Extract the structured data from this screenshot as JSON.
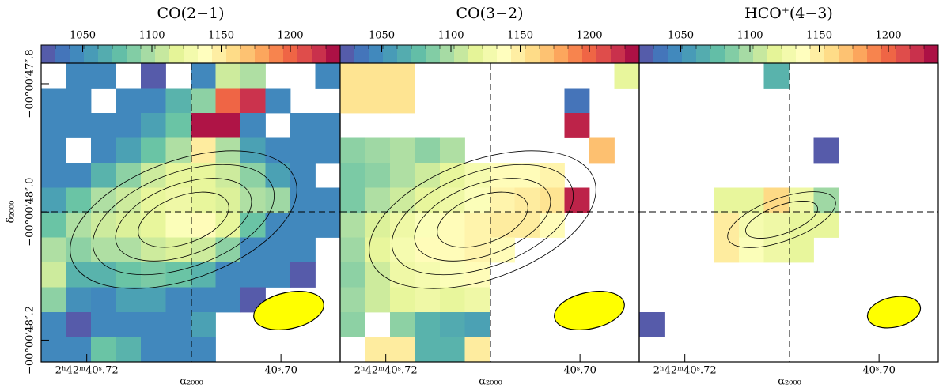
{
  "chart_data": [
    {
      "type": "heatmap",
      "title": "CO(2−1)",
      "xlabel": "α₂₀₀₀",
      "ylabel": "δ₂₀₀₀",
      "xlim": [
        40.7247,
        40.6939
      ],
      "ylim": [
        48.234,
        47.768
      ],
      "xticks": [
        {
          "value": 40.72,
          "label": "2ʰ42ᵐ40ˢ.72"
        },
        {
          "value": 40.7,
          "label": "40ˢ.70"
        }
      ],
      "yticks": [
        {
          "value": 47.8,
          "label": "−00°00′47″.8"
        },
        {
          "value": 48.0,
          "label": "−00°00′48″.0"
        },
        {
          "value": 48.2,
          "label": "−00°00′48″.2"
        }
      ],
      "clim": [
        1020,
        1236
      ],
      "cticks": [
        1050,
        1100,
        1150,
        1200
      ],
      "colormap": [
        "#5e4fa2",
        "#3d7fc0",
        "#4aa0b5",
        "#66c2a5",
        "#abdda4",
        "#e6f598",
        "#ffffbf",
        "#fee08b",
        "#fdae61",
        "#f46d43",
        "#d53e4f",
        "#9e0142"
      ],
      "z": [
        [
          null,
          1045,
          1045,
          null,
          1025,
          null,
          1045,
          1110,
          1100,
          null,
          null,
          1045
        ],
        [
          1045,
          1045,
          null,
          1045,
          1045,
          1070,
          1090,
          1200,
          1220,
          1045,
          null,
          null
        ],
        [
          1045,
          1045,
          1045,
          1045,
          1060,
          1080,
          1230,
          1230,
          1045,
          null,
          1045,
          1045
        ],
        [
          1045,
          null,
          1045,
          1060,
          1080,
          1100,
          1150,
          1100,
          1060,
          1045,
          1045,
          1045
        ],
        [
          1045,
          1045,
          1070,
          1090,
          1110,
          1120,
          1120,
          1110,
          1090,
          1060,
          1045,
          null
        ],
        [
          1060,
          1080,
          1100,
          1110,
          1120,
          1125,
          1120,
          1115,
          1100,
          1095,
          1045,
          1045
        ],
        [
          1080,
          1100,
          1110,
          1115,
          1120,
          1135,
          1140,
          1120,
          1080,
          1045,
          1045,
          1045
        ],
        [
          1100,
          1090,
          1100,
          1100,
          1110,
          1115,
          1110,
          1090,
          1045,
          1045,
          1045,
          null
        ],
        [
          1110,
          1070,
          1070,
          1080,
          1085,
          1080,
          1070,
          1045,
          1045,
          1045,
          1025,
          null
        ],
        [
          1090,
          1050,
          1045,
          1060,
          1060,
          1045,
          1045,
          1045,
          1025,
          null,
          null,
          null
        ],
        [
          1045,
          1025,
          1045,
          1045,
          1045,
          1045,
          1060,
          null,
          null,
          null,
          null,
          null
        ],
        [
          1045,
          1045,
          1080,
          1070,
          1045,
          1045,
          1045,
          null,
          null,
          null,
          null,
          null
        ]
      ]
    },
    {
      "type": "heatmap",
      "title": "CO(3−2)",
      "xlabel": "α₂₀₀₀",
      "xlim": [
        40.7247,
        40.6939
      ],
      "ylim": [
        48.234,
        47.768
      ],
      "xticks": [
        {
          "value": 40.72,
          "label": "2ʰ42ᵐ40ˢ.72"
        },
        {
          "value": 40.7,
          "label": "40ˢ.70"
        }
      ],
      "clim": [
        1020,
        1236
      ],
      "cticks": [
        1050,
        1100,
        1150,
        1200
      ],
      "colormap": [
        "#5e4fa2",
        "#3d7fc0",
        "#4aa0b5",
        "#66c2a5",
        "#abdda4",
        "#e6f598",
        "#ffffbf",
        "#fee08b",
        "#fdae61",
        "#f46d43",
        "#d53e4f",
        "#9e0142"
      ],
      "z": [
        [
          1155,
          1155,
          1155,
          null,
          null,
          null,
          null,
          null,
          null,
          null,
          null,
          1120
        ],
        [
          1155,
          1155,
          1155,
          null,
          null,
          null,
          null,
          null,
          null,
          1035,
          null,
          null
        ],
        [
          null,
          null,
          null,
          null,
          null,
          null,
          null,
          null,
          null,
          1225,
          null,
          null
        ],
        [
          1090,
          1095,
          1100,
          1090,
          1100,
          null,
          null,
          null,
          null,
          null,
          1170,
          null
        ],
        [
          1085,
          1090,
          1100,
          1110,
          1120,
          1130,
          1140,
          1140,
          1145,
          null,
          null,
          null
        ],
        [
          1085,
          1100,
          1110,
          1120,
          1125,
          1135,
          1145,
          1150,
          1155,
          1225,
          null,
          null
        ],
        [
          1100,
          1115,
          1125,
          1135,
          1140,
          1145,
          1150,
          1150,
          1140,
          null,
          null,
          null
        ],
        [
          1095,
          1120,
          1130,
          1140,
          1140,
          1145,
          1140,
          null,
          null,
          null,
          null,
          null
        ],
        [
          1090,
          1110,
          1125,
          1130,
          1135,
          1140,
          null,
          null,
          null,
          null,
          null,
          null
        ],
        [
          1095,
          1110,
          1120,
          1125,
          1120,
          1125,
          null,
          null,
          null,
          null,
          null,
          null
        ],
        [
          1090,
          null,
          1090,
          1070,
          1065,
          1060,
          null,
          null,
          null,
          null,
          null,
          null
        ],
        [
          null,
          1150,
          1150,
          1070,
          1070,
          1150,
          null,
          null,
          null,
          null,
          null,
          null
        ]
      ]
    },
    {
      "type": "heatmap",
      "title": "HCO⁺(4−3)",
      "xlabel": "α₂₀₀₀",
      "xlim": [
        40.7247,
        40.6939
      ],
      "ylim": [
        48.234,
        47.768
      ],
      "xticks": [
        {
          "value": 40.72,
          "label": "2ʰ42ᵐ40ˢ.72"
        },
        {
          "value": 40.7,
          "label": "40ˢ.70"
        }
      ],
      "clim": [
        1020,
        1236
      ],
      "cticks": [
        1050,
        1100,
        1150,
        1200
      ],
      "colormap": [
        "#5e4fa2",
        "#3d7fc0",
        "#4aa0b5",
        "#66c2a5",
        "#abdda4",
        "#e6f598",
        "#ffffbf",
        "#fee08b",
        "#fdae61",
        "#f46d43",
        "#d53e4f",
        "#9e0142"
      ],
      "z": [
        [
          null,
          null,
          null,
          null,
          null,
          1070,
          null,
          null,
          null,
          null,
          null,
          null
        ],
        [
          null,
          null,
          null,
          null,
          null,
          null,
          null,
          null,
          null,
          null,
          null,
          null
        ],
        [
          null,
          null,
          null,
          null,
          null,
          null,
          null,
          null,
          null,
          null,
          null,
          null
        ],
        [
          null,
          null,
          null,
          null,
          null,
          null,
          null,
          1025,
          null,
          null,
          null,
          null
        ],
        [
          null,
          null,
          null,
          null,
          null,
          null,
          null,
          null,
          null,
          null,
          null,
          null
        ],
        [
          null,
          null,
          null,
          1120,
          1120,
          1160,
          1125,
          1095,
          null,
          null,
          null,
          null
        ],
        [
          null,
          null,
          null,
          1150,
          1130,
          1125,
          1120,
          1120,
          null,
          null,
          null,
          null
        ],
        [
          null,
          null,
          null,
          1150,
          1135,
          1125,
          1120,
          null,
          null,
          null,
          null,
          null
        ],
        [
          null,
          null,
          null,
          null,
          null,
          null,
          null,
          null,
          null,
          null,
          null,
          null
        ],
        [
          null,
          null,
          null,
          null,
          null,
          null,
          null,
          null,
          null,
          null,
          null,
          null
        ],
        [
          1025,
          null,
          null,
          null,
          null,
          null,
          null,
          null,
          null,
          null,
          null,
          null
        ],
        [
          null,
          null,
          null,
          null,
          null,
          null,
          null,
          null,
          null,
          null,
          null,
          null
        ]
      ]
    }
  ]
}
